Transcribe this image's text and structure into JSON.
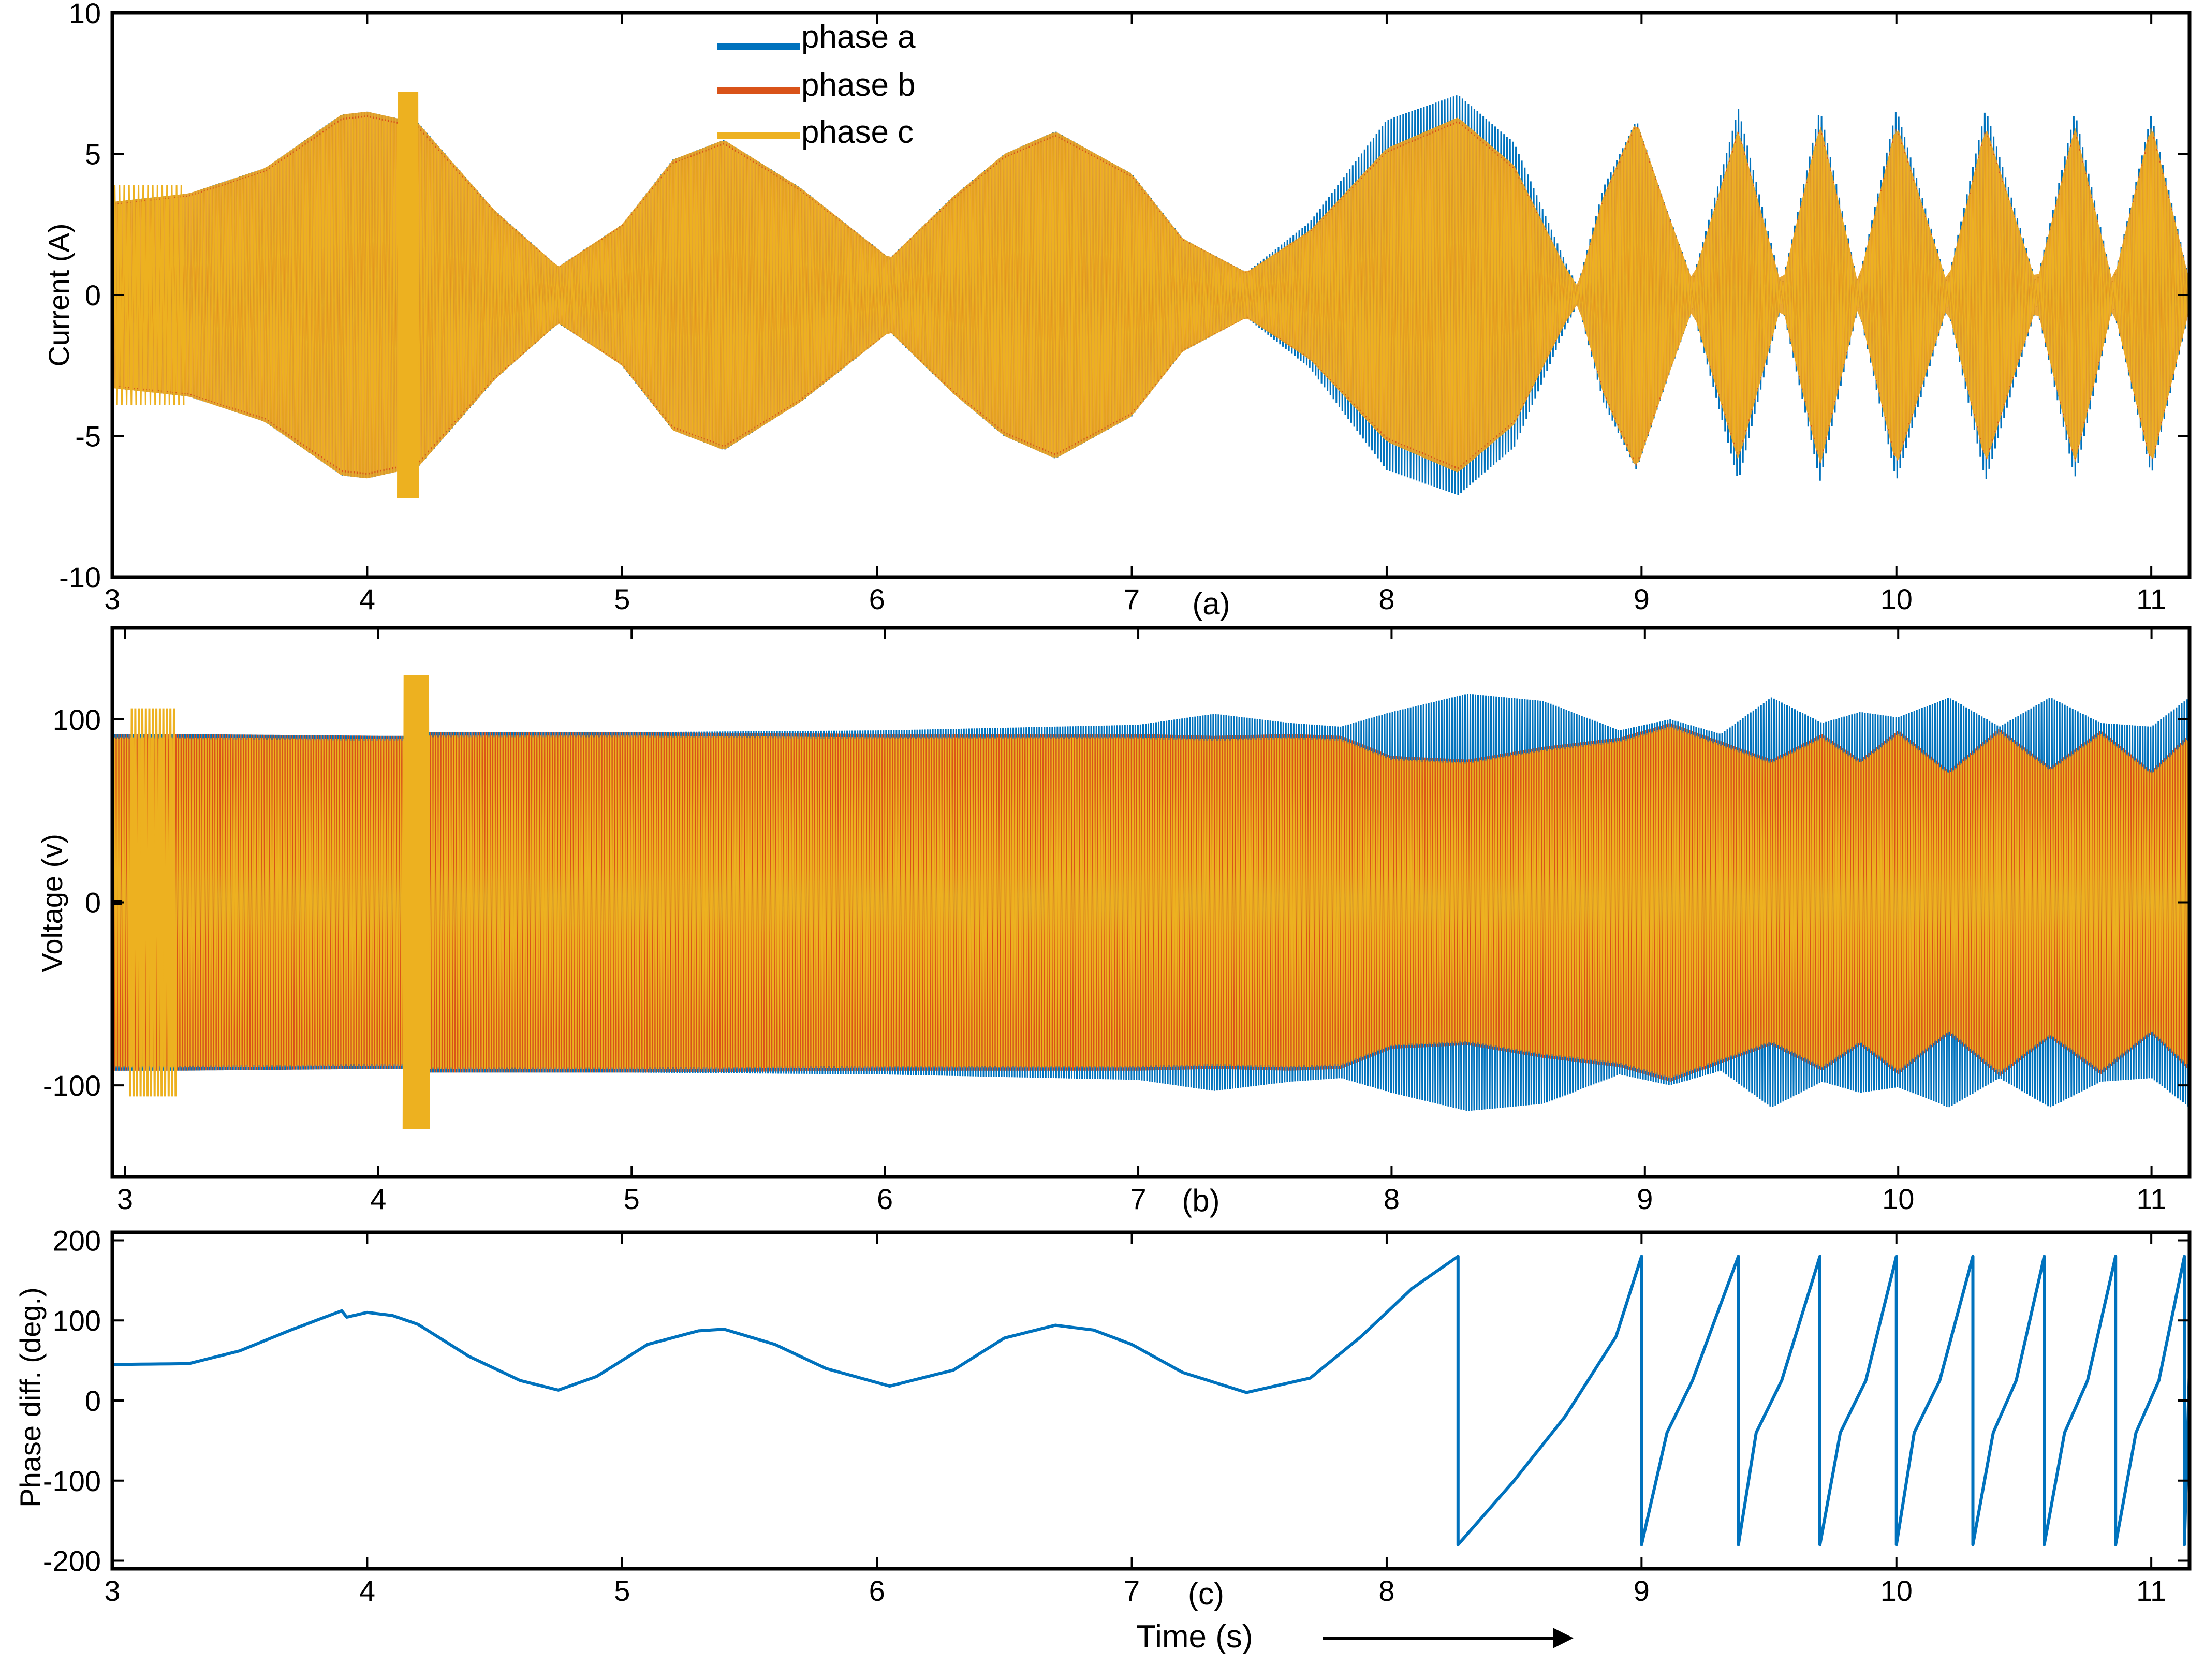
{
  "colors": {
    "phase_a": "#0072BD",
    "phase_b": "#D95319",
    "phase_c": "#EDB120",
    "fill_orange": "#E8A020",
    "axis": "#000000"
  },
  "chart_data": [
    {
      "id": "current",
      "type": "line",
      "panel_label": "(a)",
      "xlabel": "",
      "ylabel": "Current (A)",
      "xlim": [
        3,
        11.15
      ],
      "ylim": [
        -10,
        10
      ],
      "xticks": [
        3,
        4,
        5,
        6,
        7,
        8,
        9,
        10,
        11
      ],
      "yticks": [
        10,
        5,
        0,
        -5,
        -10
      ],
      "legend": {
        "placement": "top-center",
        "entries": [
          {
            "name": "phase a",
            "color": "#0072BD"
          },
          {
            "name": "phase b",
            "color": "#D95319"
          },
          {
            "name": "phase c",
            "color": "#EDB120"
          }
        ]
      },
      "envelope": {
        "description": "amplitude envelope of three-phase currents",
        "x": [
          3.0,
          3.3,
          3.6,
          3.9,
          4.0,
          4.2,
          4.5,
          4.75,
          5.0,
          5.2,
          5.4,
          5.7,
          6.05,
          6.3,
          6.5,
          6.7,
          7.0,
          7.2,
          7.45,
          7.7,
          8.0,
          8.28,
          8.5,
          8.7,
          8.75,
          8.85,
          8.98,
          9.1,
          9.2,
          9.38,
          9.55,
          9.7,
          9.85,
          10.0,
          10.2,
          10.35,
          10.55,
          10.7,
          10.85,
          11.0,
          11.15
        ],
        "orange": [
          3.3,
          3.6,
          4.5,
          6.4,
          6.5,
          6.1,
          3.0,
          1.0,
          2.5,
          4.8,
          5.5,
          3.8,
          1.3,
          3.5,
          5.0,
          5.8,
          4.3,
          2.0,
          0.8,
          2.3,
          5.2,
          6.3,
          4.6,
          1.0,
          0.3,
          3.5,
          6.2,
          3.0,
          0.5,
          5.9,
          0.3,
          6.1,
          0.4,
          6.1,
          0.4,
          6.0,
          0.4,
          6.0,
          0.4,
          6.1,
          0.5
        ],
        "blue": [
          3.3,
          3.6,
          4.5,
          6.4,
          6.5,
          6.1,
          3.0,
          1.0,
          2.5,
          4.8,
          5.5,
          3.8,
          1.3,
          3.5,
          5.0,
          5.8,
          4.3,
          2.0,
          0.8,
          2.6,
          6.2,
          7.1,
          5.4,
          1.2,
          0.3,
          3.8,
          6.2,
          3.0,
          0.5,
          6.6,
          0.3,
          6.6,
          0.4,
          6.6,
          0.4,
          6.6,
          0.4,
          6.5,
          0.4,
          6.4,
          0.5
        ]
      }
    },
    {
      "id": "voltage",
      "type": "line",
      "panel_label": "(b)",
      "xlabel": "",
      "ylabel": "Voltage (v)",
      "xlim": [
        2.95,
        11.15
      ],
      "ylim": [
        -150,
        150
      ],
      "xticks": [
        3,
        4,
        5,
        6,
        7,
        8,
        9,
        10,
        11
      ],
      "yticks": [
        100,
        0,
        -100
      ],
      "envelope": {
        "x": [
          3.0,
          3.2,
          4.0,
          4.1,
          4.2,
          5.0,
          6.0,
          7.0,
          7.3,
          7.6,
          7.8,
          8.0,
          8.3,
          8.6,
          8.9,
          9.1,
          9.3,
          9.5,
          9.7,
          9.85,
          10.0,
          10.2,
          10.4,
          10.6,
          10.8,
          11.0,
          11.15
        ],
        "orange": [
          92,
          92,
          91,
          91,
          93,
          93,
          92,
          92,
          91,
          92,
          91,
          80,
          78,
          85,
          90,
          98,
          88,
          78,
          92,
          78,
          94,
          72,
          95,
          74,
          94,
          72,
          92
        ],
        "blue": [
          92,
          92,
          91,
          91,
          93,
          93,
          94,
          97,
          103,
          98,
          96,
          104,
          114,
          110,
          94,
          100,
          92,
          112,
          98,
          104,
          101,
          112,
          96,
          112,
          98,
          96,
          112
        ]
      },
      "transients": [
        {
          "x_start": 3.02,
          "x_end": 3.2,
          "peak": 106
        },
        {
          "x_start": 4.1,
          "x_end": 4.2,
          "peak": 124
        }
      ]
    },
    {
      "id": "phase_diff",
      "type": "line",
      "panel_label": "(c)",
      "xlabel": "Time (s)",
      "ylabel": "Phase diff. (deg.)",
      "xlim": [
        3,
        11.15
      ],
      "ylim": [
        -210,
        210
      ],
      "xticks": [
        3,
        4,
        5,
        6,
        7,
        8,
        9,
        10,
        11
      ],
      "yticks": [
        200,
        100,
        0,
        -100,
        -200
      ],
      "series": [
        {
          "name": "phase difference",
          "color": "#0072BD",
          "x": [
            3.0,
            3.3,
            3.5,
            3.7,
            3.9,
            3.92,
            4.0,
            4.1,
            4.2,
            4.4,
            4.6,
            4.75,
            4.9,
            5.1,
            5.3,
            5.4,
            5.6,
            5.8,
            6.05,
            6.3,
            6.5,
            6.7,
            6.85,
            7.0,
            7.2,
            7.45,
            7.7,
            7.9,
            8.1,
            8.28,
            8.28,
            8.5,
            8.7,
            8.9,
            9.0,
            9.0,
            9.1,
            9.2,
            9.38,
            9.38,
            9.45,
            9.55,
            9.7,
            9.7,
            9.78,
            9.88,
            10.0,
            10.0,
            10.07,
            10.17,
            10.3,
            10.3,
            10.38,
            10.47,
            10.58,
            10.58,
            10.66,
            10.75,
            10.86,
            10.86,
            10.94,
            11.03,
            11.13,
            11.13,
            11.15
          ],
          "y": [
            45,
            46,
            62,
            88,
            112,
            104,
            110,
            106,
            95,
            55,
            25,
            13,
            30,
            70,
            87,
            89,
            70,
            40,
            18,
            38,
            78,
            94,
            88,
            70,
            35,
            10,
            28,
            80,
            140,
            180,
            -180,
            -100,
            -20,
            80,
            180,
            -180,
            -40,
            25,
            180,
            -180,
            -40,
            25,
            180,
            -180,
            -40,
            25,
            180,
            -180,
            -40,
            25,
            180,
            -180,
            -40,
            25,
            180,
            -180,
            -40,
            25,
            180,
            -180,
            -40,
            25,
            180,
            -180,
            40
          ]
        }
      ],
      "annotation": "arrow pointing right next to time label"
    }
  ]
}
